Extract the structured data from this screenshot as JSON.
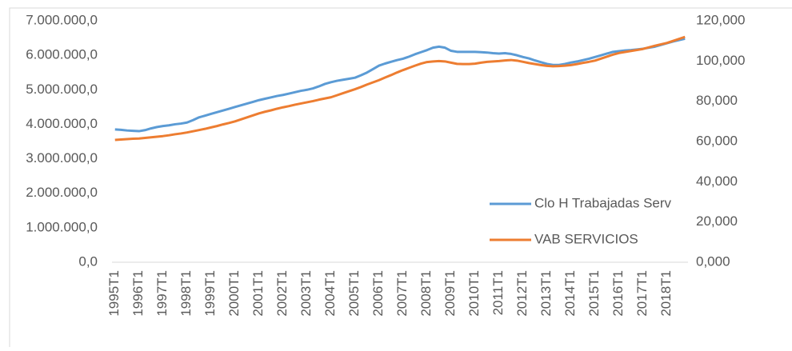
{
  "chart_data": {
    "type": "line",
    "categories": [
      "1995T1",
      null,
      null,
      null,
      "1996T1",
      null,
      null,
      null,
      "1997T1",
      null,
      null,
      null,
      "1998T1",
      null,
      null,
      null,
      "1999T1",
      null,
      null,
      null,
      "2000T1",
      null,
      null,
      null,
      "2001T1",
      null,
      null,
      null,
      "2002T1",
      null,
      null,
      null,
      "2003T1",
      null,
      null,
      null,
      "2004T1",
      null,
      null,
      null,
      "2005T1",
      null,
      null,
      null,
      "2006T1",
      null,
      null,
      null,
      "2007T1",
      null,
      null,
      null,
      "2008T1",
      null,
      null,
      null,
      "2009T1",
      null,
      null,
      null,
      "2010T1",
      null,
      null,
      null,
      "2011T1",
      null,
      null,
      null,
      "2012T1",
      null,
      null,
      null,
      "2013T1",
      null,
      null,
      null,
      "2014T1",
      null,
      null,
      null,
      "2015T1",
      null,
      null,
      null,
      "2016T1",
      null,
      null,
      null,
      "2017T1",
      null,
      null,
      null,
      "2018T1",
      null,
      null,
      null
    ],
    "series": [
      {
        "name": "Clo H Trabajadas Serv",
        "color": "#5b9bd5",
        "values": [
          3850000,
          3840000,
          3820000,
          3810000,
          3800000,
          3830000,
          3880000,
          3920000,
          3950000,
          3970000,
          4000000,
          4020000,
          4050000,
          4120000,
          4200000,
          4250000,
          4300000,
          4350000,
          4400000,
          4450000,
          4500000,
          4550000,
          4600000,
          4650000,
          4700000,
          4740000,
          4780000,
          4820000,
          4850000,
          4890000,
          4930000,
          4970000,
          5000000,
          5040000,
          5100000,
          5170000,
          5220000,
          5260000,
          5290000,
          5320000,
          5350000,
          5420000,
          5500000,
          5600000,
          5700000,
          5760000,
          5810000,
          5860000,
          5900000,
          5960000,
          6030000,
          6090000,
          6150000,
          6220000,
          6250000,
          6220000,
          6130000,
          6100000,
          6100000,
          6100000,
          6100000,
          6090000,
          6080000,
          6060000,
          6050000,
          6060000,
          6040000,
          6000000,
          5950000,
          5910000,
          5850000,
          5800000,
          5750000,
          5720000,
          5720000,
          5750000,
          5790000,
          5820000,
          5860000,
          5900000,
          5950000,
          6000000,
          6050000,
          6100000,
          6120000,
          6140000,
          6150000,
          6170000,
          6190000,
          6220000,
          6250000,
          6300000,
          6350000,
          6400000,
          6440000,
          6480000
        ]
      },
      {
        "name": "VAB SERVICIOS",
        "color": "#ed7d31",
        "axis": "y2",
        "values": [
          60.8,
          61.0,
          61.2,
          61.4,
          61.5,
          61.8,
          62.1,
          62.4,
          62.7,
          63.1,
          63.6,
          64.0,
          64.5,
          65.1,
          65.7,
          66.3,
          67.0,
          67.7,
          68.5,
          69.2,
          70.0,
          71.0,
          72.0,
          73.0,
          74.0,
          74.8,
          75.5,
          76.3,
          77.0,
          77.6,
          78.3,
          78.9,
          79.5,
          80.1,
          80.8,
          81.4,
          82.0,
          83.0,
          84.0,
          85.0,
          86.0,
          87.1,
          88.3,
          89.4,
          90.5,
          91.8,
          93.0,
          94.3,
          95.5,
          96.6,
          97.7,
          98.7,
          99.5,
          99.8,
          100.0,
          99.8,
          99.2,
          98.6,
          98.5,
          98.5,
          98.7,
          99.2,
          99.6,
          99.8,
          100.0,
          100.3,
          100.5,
          100.2,
          99.6,
          99.0,
          98.5,
          98.0,
          97.6,
          97.4,
          97.5,
          97.7,
          98.0,
          98.5,
          99.1,
          99.6,
          100.2,
          101.2,
          102.2,
          103.2,
          104.0,
          104.5,
          105.0,
          105.5,
          106.0,
          106.8,
          107.6,
          108.3,
          109.0,
          110.0,
          111.0,
          112.0
        ]
      }
    ],
    "ylim": [
      0,
      7000000
    ],
    "yticks": [
      {
        "value": 0,
        "label": "0,0"
      },
      {
        "value": 1000000,
        "label": "1.000.000,0"
      },
      {
        "value": 2000000,
        "label": "2.000.000,0"
      },
      {
        "value": 3000000,
        "label": "3.000.000,0"
      },
      {
        "value": 4000000,
        "label": "4.000.000,0"
      },
      {
        "value": 5000000,
        "label": "5.000.000,0"
      },
      {
        "value": 6000000,
        "label": "6.000.000,0"
      },
      {
        "value": 7000000,
        "label": "7.000.000,0"
      }
    ],
    "y2lim": [
      0,
      120
    ],
    "y2ticks": [
      {
        "value": 0,
        "label": "0,000"
      },
      {
        "value": 20,
        "label": "20,000"
      },
      {
        "value": 40,
        "label": "40,000"
      },
      {
        "value": 60,
        "label": "60,000"
      },
      {
        "value": 80,
        "label": "80,000"
      },
      {
        "value": 100,
        "label": "100,000"
      },
      {
        "value": 120,
        "label": "120,000"
      }
    ],
    "grid": false,
    "legend": "lower right"
  }
}
